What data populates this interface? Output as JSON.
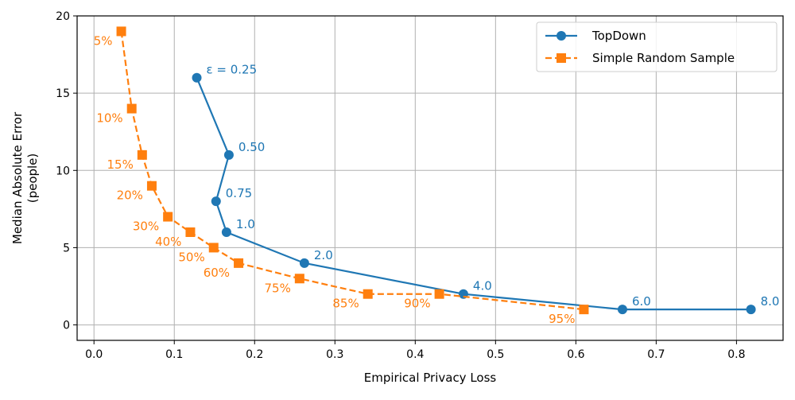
{
  "chart_data": {
    "type": "line",
    "title": "",
    "xlabel": "Empirical Privacy Loss",
    "ylabel": "Median Absolute Error\n(people)",
    "xlim": [
      -0.021,
      0.858
    ],
    "ylim": [
      -1.0,
      20.0
    ],
    "xticks": [
      0.0,
      0.1,
      0.2,
      0.3,
      0.4,
      0.5,
      0.6,
      0.7,
      0.8
    ],
    "xtick_labels": [
      "0.0",
      "0.1",
      "0.2",
      "0.3",
      "0.4",
      "0.5",
      "0.6",
      "0.7",
      "0.8"
    ],
    "yticks": [
      0,
      5,
      10,
      15,
      20
    ],
    "ytick_labels": [
      "0",
      "5",
      "10",
      "15",
      "20"
    ],
    "grid": true,
    "legend_position": "top-right",
    "series": [
      {
        "name": "TopDown",
        "color": "#1f77b4",
        "marker": "circle",
        "linestyle": "solid",
        "x": [
          0.128,
          0.168,
          0.152,
          0.165,
          0.262,
          0.46,
          0.658,
          0.818
        ],
        "y": [
          16,
          11,
          8,
          6,
          4,
          2,
          1,
          1
        ],
        "point_labels": [
          "ε = 0.25",
          "0.50",
          "0.75",
          "1.0",
          "2.0",
          "4.0",
          "6.0",
          "8.0"
        ]
      },
      {
        "name": "Simple Random Sample",
        "color": "#ff7f0e",
        "marker": "square",
        "linestyle": "dashed",
        "x": [
          0.034,
          0.047,
          0.06,
          0.072,
          0.092,
          0.12,
          0.149,
          0.18,
          0.256,
          0.341,
          0.43,
          0.61
        ],
        "y": [
          19,
          14,
          11,
          9,
          7,
          6,
          5,
          4,
          3,
          2,
          2,
          1
        ],
        "point_labels": [
          "5%",
          "10%",
          "15%",
          "20%",
          "30%",
          "40%",
          "50%",
          "60%",
          "75%",
          "85%",
          "90%",
          "95%"
        ]
      }
    ]
  }
}
